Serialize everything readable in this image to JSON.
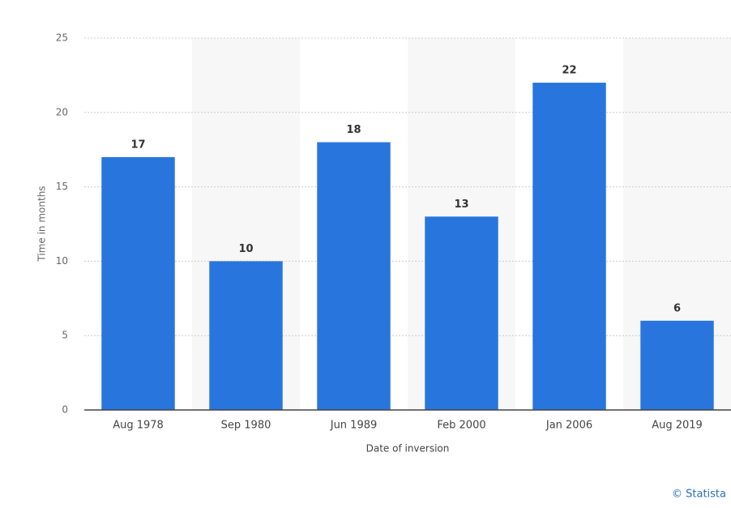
{
  "chart_data": {
    "type": "bar",
    "categories": [
      "Aug 1978",
      "Sep 1980",
      "Jun 1989",
      "Feb 2000",
      "Jan 2006",
      "Aug 2019"
    ],
    "values": [
      17,
      10,
      18,
      13,
      22,
      6
    ],
    "color": "#2876dd",
    "ylim": [
      0,
      25
    ],
    "yticks": [
      0,
      5,
      10,
      15,
      20,
      25
    ],
    "grid": true,
    "y_label": "Time in months",
    "x_label": "Date of inversion",
    "credit": "© Statista"
  }
}
